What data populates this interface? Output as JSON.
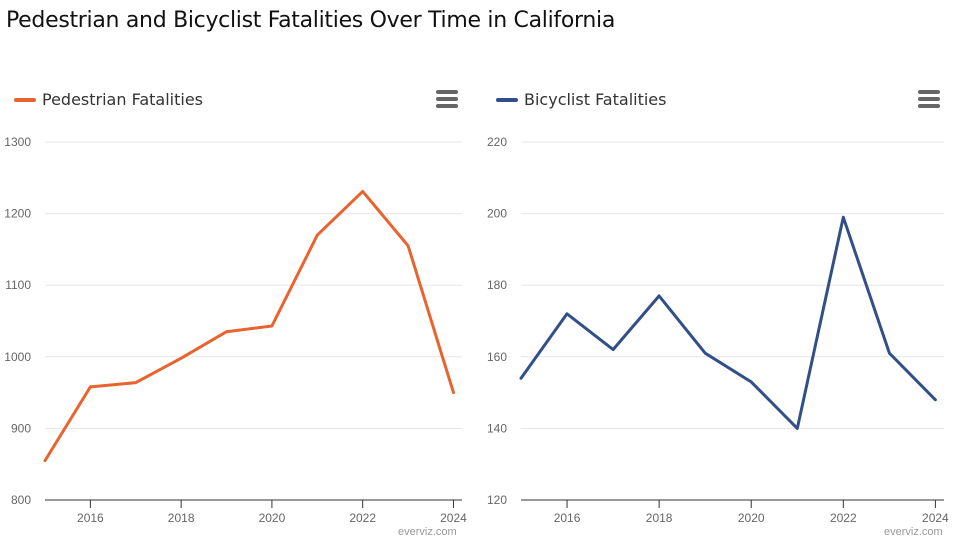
{
  "page": {
    "title": "Pedestrian and Bicyclist Fatalities Over Time in California"
  },
  "chart_data": [
    {
      "type": "line",
      "title": "",
      "xlabel": "",
      "ylabel": "",
      "legend": "top-left",
      "grid": true,
      "color": "#e8632e",
      "series": [
        {
          "name": "Pedestrian Fatalities",
          "x": [
            2015,
            2016,
            2017,
            2018,
            2019,
            2020,
            2021,
            2022,
            2023,
            2024
          ],
          "values": [
            855,
            958,
            964,
            998,
            1035,
            1043,
            1170,
            1231,
            1155,
            950
          ]
        }
      ],
      "xlim": [
        2015,
        2024.1
      ],
      "ylim": [
        800,
        1300
      ],
      "xticks": [
        "2016",
        "2018",
        "2020",
        "2022",
        "2024"
      ],
      "yticks": [
        "800",
        "900",
        "1000",
        "1100",
        "1200",
        "1300"
      ],
      "credit": "everviz.com"
    },
    {
      "type": "line",
      "title": "",
      "xlabel": "",
      "ylabel": "",
      "legend": "top-left",
      "grid": true,
      "color": "#334f87",
      "series": [
        {
          "name": "Bicyclist Fatalities",
          "x": [
            2015,
            2016,
            2017,
            2018,
            2019,
            2020,
            2021,
            2022,
            2023,
            2024
          ],
          "values": [
            154,
            172,
            162,
            177,
            161,
            153,
            140,
            199,
            161,
            148
          ]
        }
      ],
      "xlim": [
        2015,
        2024.1
      ],
      "ylim": [
        120,
        220
      ],
      "xticks": [
        "2016",
        "2018",
        "2020",
        "2022",
        "2024"
      ],
      "yticks": [
        "120",
        "140",
        "160",
        "180",
        "200",
        "220"
      ],
      "credit": "everviz.com"
    }
  ]
}
